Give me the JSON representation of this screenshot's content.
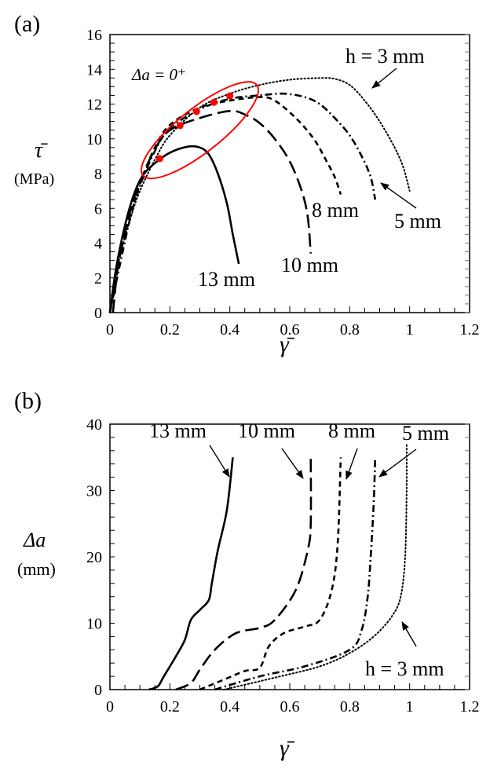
{
  "chart_data": [
    {
      "type": "line",
      "panel_label": "(a)",
      "xlabel": "γ̄",
      "ylabel": "τ̄",
      "ylabel_unit": "(MPa)",
      "xlim": [
        0,
        1.2
      ],
      "ylim": [
        0,
        16
      ],
      "xticks": [
        "0",
        "0.2",
        "0.4",
        "0.6",
        "0.8",
        "1",
        "1.2"
      ],
      "yticks": [
        "0",
        "2",
        "4",
        "6",
        "8",
        "10",
        "12",
        "14",
        "16"
      ],
      "grid": false,
      "annotation": "Δa = 0⁺",
      "series": [
        {
          "name": "h = 3 mm",
          "label": "h = 3 mm",
          "style": "dotted",
          "x": [
            0,
            0.03,
            0.07,
            0.1,
            0.15,
            0.2,
            0.3,
            0.4,
            0.5,
            0.6,
            0.7,
            0.75,
            0.8,
            0.85,
            0.9,
            0.95,
            0.98,
            1.0
          ],
          "y": [
            0,
            3,
            5.5,
            7,
            8.8,
            10.2,
            11.8,
            12.6,
            13.1,
            13.4,
            13.5,
            13.45,
            13.1,
            12.2,
            11,
            9.5,
            8.3,
            7.0
          ]
        },
        {
          "name": "5 mm",
          "label": "5 mm",
          "style": "dash-dot",
          "x": [
            0,
            0.03,
            0.07,
            0.1,
            0.15,
            0.2,
            0.3,
            0.4,
            0.5,
            0.58,
            0.65,
            0.7,
            0.75,
            0.8,
            0.84,
            0.87,
            0.885
          ],
          "y": [
            0,
            2.5,
            5.6,
            7.3,
            9.3,
            10.6,
            11.7,
            12.3,
            12.5,
            12.6,
            12.4,
            12,
            11.2,
            10.2,
            9,
            7.8,
            6.5
          ]
        },
        {
          "name": "8 mm",
          "label": "8 mm",
          "style": "short-dash",
          "x": [
            0,
            0.03,
            0.07,
            0.1,
            0.15,
            0.2,
            0.3,
            0.4,
            0.5,
            0.55,
            0.62,
            0.68,
            0.72,
            0.75,
            0.77
          ],
          "y": [
            0,
            3,
            5.8,
            7.4,
            9.5,
            10.8,
            11.8,
            12.2,
            12.4,
            12.2,
            11.2,
            10,
            8.8,
            7.8,
            6.8
          ]
        },
        {
          "name": "10 mm",
          "label": "10 mm",
          "style": "long-dash",
          "x": [
            0.01,
            0.03,
            0.07,
            0.1,
            0.15,
            0.2,
            0.3,
            0.4,
            0.45,
            0.5,
            0.55,
            0.6,
            0.64,
            0.66,
            0.67
          ],
          "y": [
            0,
            3,
            6,
            7.5,
            9.4,
            10.5,
            11.2,
            11.6,
            11.4,
            10.9,
            10,
            8.7,
            7,
            5.5,
            3.4
          ]
        },
        {
          "name": "13 mm",
          "label": "13 mm",
          "style": "solid",
          "x": [
            0,
            0.02,
            0.05,
            0.08,
            0.11,
            0.15,
            0.2,
            0.26,
            0.3,
            0.33,
            0.36,
            0.39,
            0.41,
            0.43
          ],
          "y": [
            0,
            2.5,
            5,
            6.8,
            7.9,
            8.6,
            9.2,
            9.55,
            9.5,
            9.1,
            8,
            6.3,
            4.5,
            2.8
          ]
        }
      ],
      "markers": {
        "color": "#ff0000",
        "x": [
          0.166,
          0.234,
          0.289,
          0.347,
          0.4
        ],
        "y": [
          8.86,
          10.76,
          11.57,
          12.1,
          12.47
        ]
      },
      "highlight_ellipse": {
        "color": "#ff0000",
        "from": [
          0.11,
          7.9
        ],
        "to": [
          0.49,
          13.1
        ]
      }
    },
    {
      "type": "line",
      "panel_label": "(b)",
      "xlabel": "γ̄",
      "ylabel": "Δa",
      "ylabel_unit": "(mm)",
      "xlim": [
        0,
        1.2
      ],
      "ylim": [
        0,
        40
      ],
      "xticks": [
        "0",
        "0.2",
        "0.4",
        "0.6",
        "0.8",
        "1",
        "1.2"
      ],
      "yticks": [
        "0",
        "10",
        "20",
        "30",
        "40"
      ],
      "grid": false,
      "series": [
        {
          "name": "13 mm",
          "label": "13 mm",
          "style": "solid",
          "x": [
            0.13,
            0.16,
            0.18,
            0.22,
            0.25,
            0.27,
            0.3,
            0.33,
            0.34,
            0.36,
            0.39,
            0.41
          ],
          "y": [
            0,
            0.5,
            2,
            5,
            7.5,
            10.5,
            12,
            13.5,
            16,
            21,
            27,
            35
          ]
        },
        {
          "name": "10 mm",
          "label": "10 mm",
          "style": "long-dash",
          "x": [
            0.22,
            0.27,
            0.3,
            0.35,
            0.42,
            0.5,
            0.55,
            0.62,
            0.66,
            0.67,
            0.67
          ],
          "y": [
            0,
            1,
            3,
            6,
            8.5,
            9.3,
            10.5,
            15,
            21,
            25,
            35
          ]
        },
        {
          "name": "8 mm",
          "label": "8 mm",
          "style": "short-dash",
          "x": [
            0.3,
            0.38,
            0.45,
            0.5,
            0.53,
            0.58,
            0.65,
            0.7,
            0.74,
            0.76,
            0.77
          ],
          "y": [
            0,
            1.5,
            2.8,
            3.3,
            6.5,
            8.5,
            9.5,
            10.5,
            15,
            22,
            35
          ]
        },
        {
          "name": "5 mm",
          "label": "5 mm",
          "style": "dash-dot",
          "x": [
            0.35,
            0.5,
            0.65,
            0.8,
            0.84,
            0.86,
            0.87,
            0.88,
            0.885
          ],
          "y": [
            0,
            2,
            3.5,
            6,
            9,
            14,
            20,
            28,
            35
          ]
        },
        {
          "name": "h = 3 mm",
          "label": "h = 3 mm",
          "style": "dotted",
          "x": [
            0.38,
            0.55,
            0.7,
            0.8,
            0.88,
            0.94,
            0.97,
            0.985,
            0.99,
            0.99
          ],
          "y": [
            0,
            1.8,
            3.5,
            5.5,
            8,
            11,
            14,
            20,
            30,
            37
          ]
        }
      ]
    }
  ]
}
